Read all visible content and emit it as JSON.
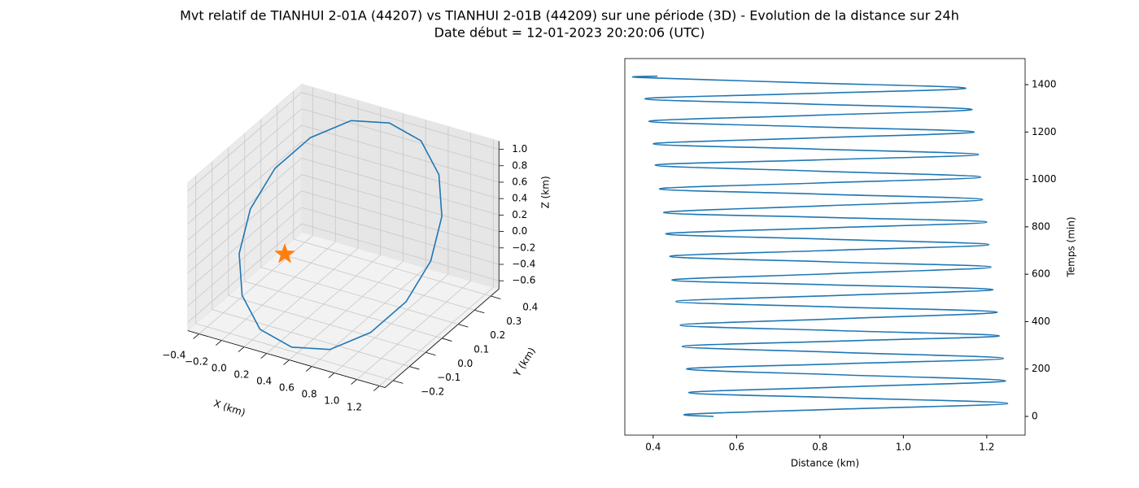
{
  "title": "Mvt relatif de TIANHUI 2-01A (44207) vs TIANHUI 2-01B (44209) sur une période (3D) - Evolution de la distance sur 24h",
  "subtitle": "Date début = 12-01-2023 20:20:06 (UTC)",
  "chart_data": [
    {
      "type": "line3d",
      "color": "#1f77b4",
      "x": [
        1.15,
        1.09,
        0.92,
        0.66,
        0.35,
        0.04,
        -0.22,
        -0.39,
        -0.45,
        -0.39,
        -0.22,
        0.04,
        0.35,
        0.66,
        0.92,
        1.09,
        1.15
      ],
      "y": [
        0.1,
        0.21,
        0.31,
        0.38,
        0.4,
        0.38,
        0.31,
        0.21,
        0.1,
        -0.01,
        -0.11,
        -0.18,
        -0.2,
        -0.18,
        -0.11,
        -0.01,
        0.1
      ],
      "z": [
        0.2,
        0.53,
        0.8,
        0.99,
        1.05,
        0.99,
        0.8,
        0.53,
        0.2,
        -0.13,
        -0.4,
        -0.59,
        -0.65,
        -0.59,
        -0.4,
        -0.13,
        0.2
      ],
      "marker": {
        "x": 0,
        "y": 0,
        "z": 0,
        "color": "#ff7f0e"
      },
      "xlim": [
        -0.5,
        1.25
      ],
      "ylim": [
        -0.25,
        0.45
      ],
      "zlim": [
        -0.7,
        1.1
      ],
      "xticks": [
        {
          "value": -0.4,
          "label": "−0.4"
        },
        {
          "value": -0.2,
          "label": "−0.2"
        },
        {
          "value": 0,
          "label": "0.0"
        },
        0.2,
        0.4,
        0.6,
        0.8,
        {
          "value": 1,
          "label": "1.0"
        },
        1.2
      ],
      "yticks": [
        {
          "value": -0.2,
          "label": "−0.2"
        },
        {
          "value": -0.1,
          "label": "−0.1"
        },
        {
          "value": 0,
          "label": "0.0"
        },
        0.1,
        0.2,
        0.3,
        0.4
      ],
      "zticks": [
        {
          "value": -0.6,
          "label": "−0.6"
        },
        {
          "value": -0.4,
          "label": "−0.4"
        },
        {
          "value": -0.2,
          "label": "−0.2"
        },
        {
          "value": 0,
          "label": "0.0"
        },
        0.2,
        0.4,
        0.6,
        0.8,
        {
          "value": 1,
          "label": "1.0"
        }
      ],
      "xlabel": "X (km)",
      "ylabel": "Y (km)",
      "zlabel": "Z (km)",
      "grid": true
    },
    {
      "type": "line",
      "color": "#1f77b4",
      "x": [
        0.545,
        0.49,
        0.87,
        1.25,
        0.87,
        0.485,
        0.865,
        1.245,
        0.86,
        0.48,
        0.85,
        1.24,
        0.85,
        0.47,
        0.85,
        1.23,
        0.845,
        0.465,
        0.845,
        1.225,
        0.835,
        0.455,
        0.835,
        1.215,
        0.83,
        0.445,
        0.825,
        1.21,
        0.825,
        0.44,
        0.815,
        1.205,
        0.815,
        0.43,
        0.81,
        1.2,
        0.81,
        0.425,
        0.8,
        1.19,
        0.8,
        0.415,
        0.795,
        1.185,
        0.795,
        0.405,
        0.79,
        1.18,
        0.79,
        0.4,
        0.785,
        1.17,
        0.78,
        0.39,
        0.775,
        1.165,
        0.77,
        0.38,
        0.765,
        1.15,
        0.76,
        0.37,
        0.41
      ],
      "y": [
        0,
        10,
        32,
        55,
        78,
        100,
        125,
        150,
        175,
        200,
        222,
        245,
        270,
        295,
        318,
        340,
        362,
        385,
        412,
        440,
        462,
        485,
        510,
        535,
        555,
        575,
        602,
        630,
        652,
        675,
        700,
        725,
        748,
        770,
        795,
        820,
        840,
        860,
        888,
        915,
        938,
        960,
        985,
        1010,
        1035,
        1060,
        1082,
        1105,
        1128,
        1150,
        1175,
        1200,
        1222,
        1245,
        1270,
        1295,
        1318,
        1340,
        1362,
        1385,
        1408,
        1430,
        1436
      ],
      "xlim": [
        0.332,
        1.292
      ],
      "ylim": [
        -79,
        1510
      ],
      "xticks": [
        0.4,
        0.6,
        0.8,
        {
          "value": 1,
          "label": "1.0"
        },
        1.2
      ],
      "yticks": [
        0,
        200,
        400,
        600,
        800,
        1000,
        1200,
        1400
      ],
      "xlabel": "Distance (km)",
      "ylabel": "Temps (min)",
      "yaxis_side": "right"
    }
  ]
}
